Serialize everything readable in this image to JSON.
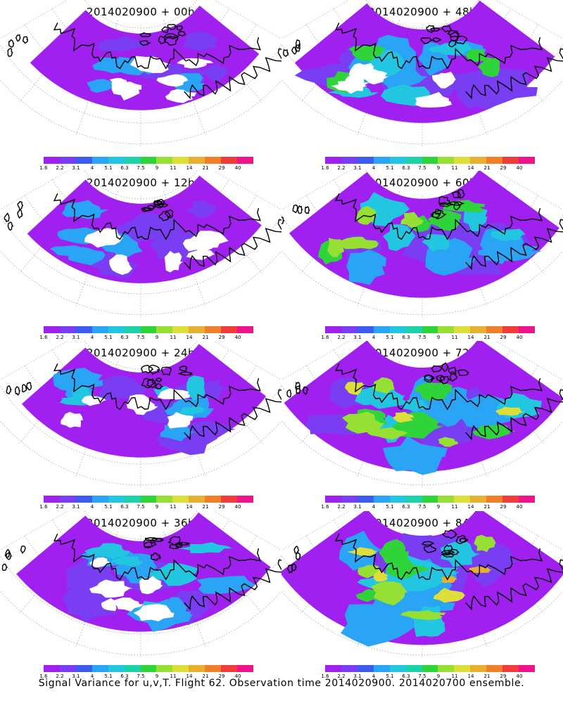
{
  "panels": [
    {
      "title": "2014020900 + 00h",
      "lead": "00h",
      "activity": 0.15
    },
    {
      "title": "2014020900 + 48h",
      "lead": "48h",
      "activity": 0.55
    },
    {
      "title": "2014020900 + 12h",
      "lead": "12h",
      "activity": 0.22
    },
    {
      "title": "2014020900 + 60h",
      "lead": "60h",
      "activity": 0.68
    },
    {
      "title": "2014020900 + 24h",
      "lead": "24h",
      "activity": 0.35
    },
    {
      "title": "2014020900 + 72h",
      "lead": "72h",
      "activity": 0.8
    },
    {
      "title": "2014020900 + 36h",
      "lead": "36h",
      "activity": 0.48
    },
    {
      "title": "2014020900 + 84h",
      "lead": "84h",
      "activity": 0.9
    }
  ],
  "colorbar": {
    "labels": [
      "1.6",
      "2.2",
      "3.1",
      "4",
      "5.1",
      "6.3",
      "7.5",
      "9",
      "11",
      "14",
      "21",
      "29",
      "40"
    ],
    "colors": [
      "#a020f0",
      "#7a3ef2",
      "#3c5cf0",
      "#2aa4f4",
      "#22c6e0",
      "#1ed2a8",
      "#2ed43a",
      "#96e034",
      "#dede3a",
      "#e8b030",
      "#f07f2a",
      "#f03c3c",
      "#f0148c"
    ]
  },
  "caption": "Signal Variance for u,v,T. Flight 62. Observation time 2014020900. 2014020700 ensemble."
}
